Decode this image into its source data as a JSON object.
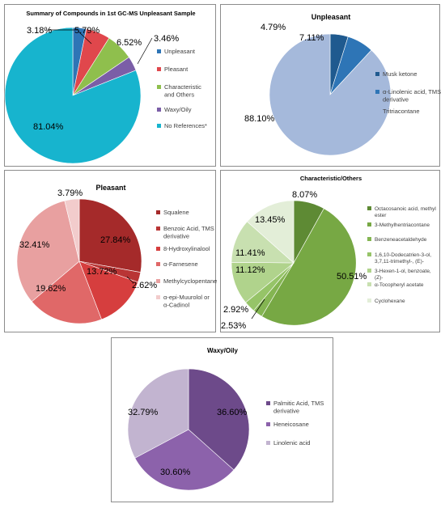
{
  "chart_data": [
    {
      "id": "summary",
      "type": "pie",
      "title": "Summary of Compounds in 1st GC-MS Unpleasant Sample",
      "slices": [
        {
          "label": "Unpleasant",
          "value": 3.18,
          "display": "3.18%",
          "color": "#2e75b6"
        },
        {
          "label": "Pleasant",
          "value": 5.79,
          "display": "5.79%",
          "color": "#e0474c"
        },
        {
          "label": "Characteristic and Others",
          "value": 6.52,
          "display": "6.52%",
          "color": "#8fbf4d"
        },
        {
          "label": "Waxy/Oily",
          "value": 3.46,
          "display": "3.46%",
          "color": "#7b5ea7"
        },
        {
          "label": "No References*",
          "value": 81.04,
          "display": "81.04%",
          "color": "#17b4ce"
        }
      ]
    },
    {
      "id": "unpleasant",
      "type": "pie",
      "title": "Unpleasant",
      "slices": [
        {
          "label": "Musk ketone",
          "value": 4.79,
          "display": "4.79%",
          "color": "#1f5a8f"
        },
        {
          "label": "α-Linolenic acid, TMS derivative",
          "value": 7.11,
          "display": "7.11%",
          "color": "#2e75b6"
        },
        {
          "label": "Tritriacontane",
          "value": 88.1,
          "display": "88.10%",
          "color": "#a5b9db"
        }
      ]
    },
    {
      "id": "pleasant",
      "type": "pie",
      "title": "Pleasant",
      "slices": [
        {
          "label": "Squalene",
          "value": 27.84,
          "display": "27.84%",
          "color": "#a52a2a"
        },
        {
          "label": "Benzoic Acid, TMS derivative",
          "value": 2.62,
          "display": "2.62%",
          "color": "#b93535"
        },
        {
          "label": "8-Hydroxylinalool",
          "value": 13.72,
          "display": "13.72%",
          "color": "#d63e3e"
        },
        {
          "label": "α-Farnesene",
          "value": 19.62,
          "display": "19.62%",
          "color": "#e06868"
        },
        {
          "label": "Methylcyclopentane",
          "value": 32.41,
          "display": "32.41%",
          "color": "#e8a0a0"
        },
        {
          "label": "α-epi-Muurolol  or α-Cadinol",
          "value": 3.79,
          "display": "3.79%",
          "color": "#f2cccc"
        }
      ]
    },
    {
      "id": "characteristic",
      "type": "pie",
      "title": "Characteristic/Others",
      "slices": [
        {
          "label": "Octacosanoic acid, methyl ester",
          "value": 8.07,
          "display": "8.07%",
          "color": "#5e8a34"
        },
        {
          "label": "3-Methylhentriacontane",
          "value": 50.51,
          "display": "50.51%",
          "color": "#77a844"
        },
        {
          "label": "Benzeneacetaldehyde",
          "value": 2.53,
          "display": "2.53%",
          "color": "#84b552"
        },
        {
          "label": "1,6,10-Dodecatrien-3-ol, 3,7,11-trimethyl-, (E)-",
          "value": 2.92,
          "display": "2.92%",
          "color": "#96c468"
        },
        {
          "label": "3-Hexen-1-ol, benzoate, (Z)-",
          "value": 11.12,
          "display": "11.12%",
          "color": "#b0d38c"
        },
        {
          "label": "α-Tocopheryl acetate",
          "value": 11.41,
          "display": "11.41%",
          "color": "#c8e0b0"
        },
        {
          "label": "Cyclohexane",
          "value": 13.45,
          "display": "13.45%",
          "color": "#e3eed8"
        }
      ]
    },
    {
      "id": "waxy",
      "type": "pie",
      "title": "Waxy/Oily",
      "slices": [
        {
          "label": "Palmitic Acid, TMS derivative",
          "value": 36.6,
          "display": "36.60%",
          "color": "#6d4a8a"
        },
        {
          "label": "Heneicosane",
          "value": 30.6,
          "display": "30.60%",
          "color": "#8c62ab"
        },
        {
          "label": "Linolenic acid",
          "value": 32.79,
          "display": "32.79%",
          "color": "#c2b4d0"
        }
      ]
    }
  ]
}
